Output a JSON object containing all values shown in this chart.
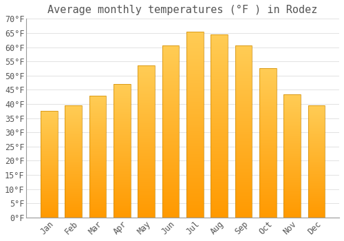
{
  "title": "Average monthly temperatures (°F ) in Rodez",
  "months": [
    "Jan",
    "Feb",
    "Mar",
    "Apr",
    "May",
    "Jun",
    "Jul",
    "Aug",
    "Sep",
    "Oct",
    "Nov",
    "Dec"
  ],
  "values": [
    37.5,
    39.5,
    43.0,
    47.0,
    53.5,
    60.5,
    65.5,
    64.5,
    60.5,
    52.5,
    43.5,
    39.5
  ],
  "bar_color_top": "#FFB830",
  "bar_color_bottom": "#FFA500",
  "background_color": "#FFFFFF",
  "grid_color": "#DDDDDD",
  "text_color": "#555555",
  "ylim": [
    0,
    70
  ],
  "yticks": [
    0,
    5,
    10,
    15,
    20,
    25,
    30,
    35,
    40,
    45,
    50,
    55,
    60,
    65,
    70
  ],
  "title_fontsize": 11,
  "tick_fontsize": 8.5,
  "font_family": "monospace",
  "bar_width": 0.7,
  "bar_edge_color": "#CC8800",
  "bar_edge_width": 0.5
}
